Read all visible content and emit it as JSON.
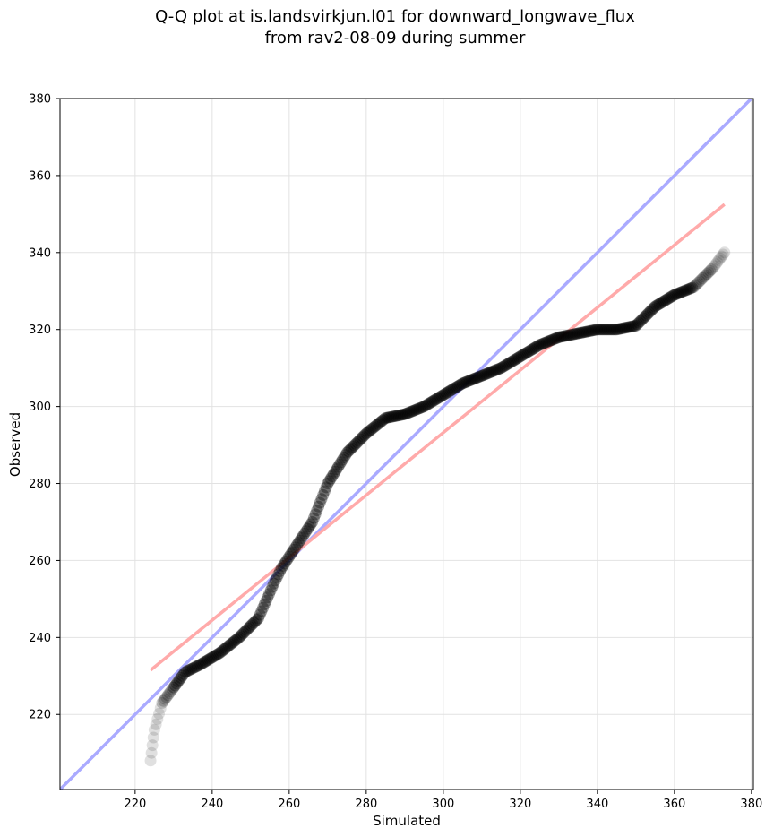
{
  "chart_data": {
    "type": "scatter",
    "title_lines": [
      "Q-Q plot at is.landsvirkjun.l01 for downward_longwave_flux",
      "from rav2-08-09 during summer"
    ],
    "xlabel": "Simulated",
    "ylabel": "Observed",
    "xlim": [
      200.5,
      380.5
    ],
    "ylim": [
      200.5,
      380
    ],
    "xticks": [
      220,
      240,
      260,
      280,
      300,
      320,
      340,
      360,
      380
    ],
    "yticks": [
      220,
      240,
      260,
      280,
      300,
      320,
      340,
      360,
      380
    ],
    "grid": true,
    "quantile_anchors": {
      "x": [
        224,
        225,
        227,
        230,
        233,
        237,
        242,
        247,
        252,
        256,
        258,
        262,
        266,
        270,
        275,
        280,
        285,
        290,
        295,
        300,
        305,
        310,
        315,
        320,
        325,
        330,
        335,
        340,
        345,
        350,
        355,
        360,
        365,
        370,
        373
      ],
      "y": [
        208,
        216,
        223,
        227,
        231,
        233,
        236,
        240,
        245,
        254,
        258,
        264,
        270,
        280,
        288,
        293,
        297,
        298,
        300,
        303,
        306,
        308,
        310,
        313,
        316,
        318,
        319,
        320,
        320,
        321,
        326,
        329,
        331,
        336,
        340
      ]
    },
    "reference_lines": [
      {
        "name": "1:1 line",
        "x": [
          200.5,
          380.5
        ],
        "y": [
          200.5,
          380.5
        ],
        "color": "#aaaaff"
      },
      {
        "name": "fit line",
        "x": [
          224,
          373
        ],
        "y": [
          231.5,
          352.5
        ],
        "color": "#ffaaaa"
      }
    ],
    "marker_color": "#000000"
  }
}
